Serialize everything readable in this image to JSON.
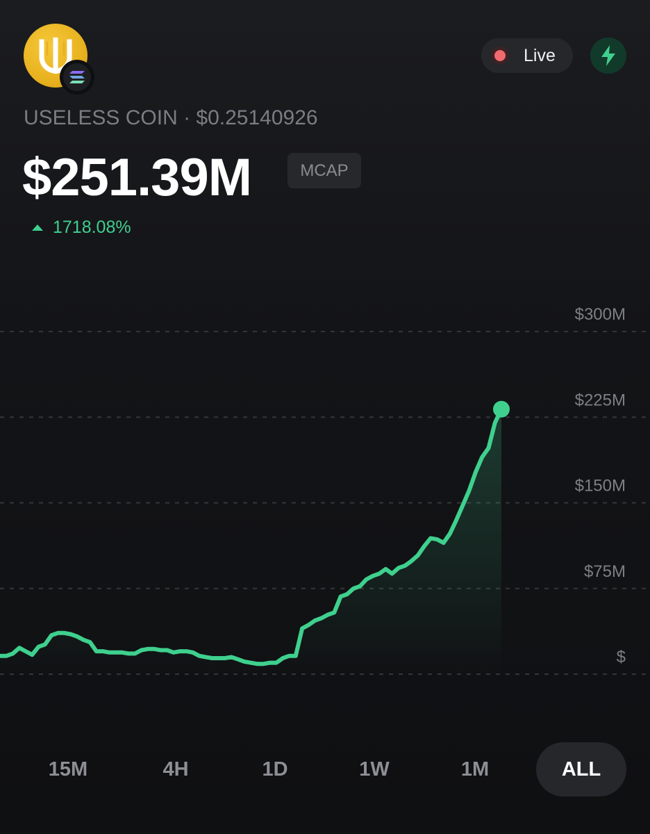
{
  "header": {
    "logo": "useless-coin-logo",
    "chain_badge": "solana-icon",
    "live_label": "Live",
    "bolt_icon": "lightning-icon"
  },
  "token": {
    "name": "USELESS COIN",
    "separator": "·",
    "price": "$0.25140926",
    "market_cap": "$251.39M",
    "metric_badge": "MCAP",
    "change": "1718.08%",
    "change_direction": "up"
  },
  "colors": {
    "accent_green": "#3fd08e",
    "live_red": "#f06a6f",
    "logo_yellow": "#e8b21f"
  },
  "timeframes": [
    {
      "label": "15M",
      "active": false
    },
    {
      "label": "4H",
      "active": false
    },
    {
      "label": "1D",
      "active": false
    },
    {
      "label": "1W",
      "active": false
    },
    {
      "label": "1M",
      "active": false
    },
    {
      "label": "ALL",
      "active": true
    }
  ],
  "chart_data": {
    "type": "line",
    "title": "",
    "xlabel": "",
    "ylabel": "",
    "y_tick_labels": [
      "$300M",
      "$225M",
      "$150M",
      "$75M",
      "$"
    ],
    "y_ticks": [
      300,
      225,
      150,
      75,
      0
    ],
    "ylim": [
      0,
      300
    ],
    "grid": true,
    "series": [
      {
        "values": [
          16,
          16,
          18,
          23,
          20,
          17,
          24,
          26,
          34,
          36,
          36,
          35,
          33,
          30,
          28,
          20,
          20,
          19,
          19,
          19,
          18,
          18,
          21,
          22,
          22,
          21,
          21,
          19,
          20,
          20,
          19,
          16,
          15,
          14,
          14,
          14,
          15,
          13,
          11,
          10,
          9,
          9,
          10,
          10,
          14,
          16,
          16,
          40,
          43,
          47,
          49,
          52,
          54,
          68,
          70,
          75,
          77,
          83,
          86,
          88,
          92,
          88,
          93,
          95,
          99,
          104,
          112,
          119,
          118,
          115,
          123,
          135,
          148,
          161,
          177,
          190,
          198,
          220,
          232
        ]
      }
    ],
    "last_value": 251.39
  }
}
